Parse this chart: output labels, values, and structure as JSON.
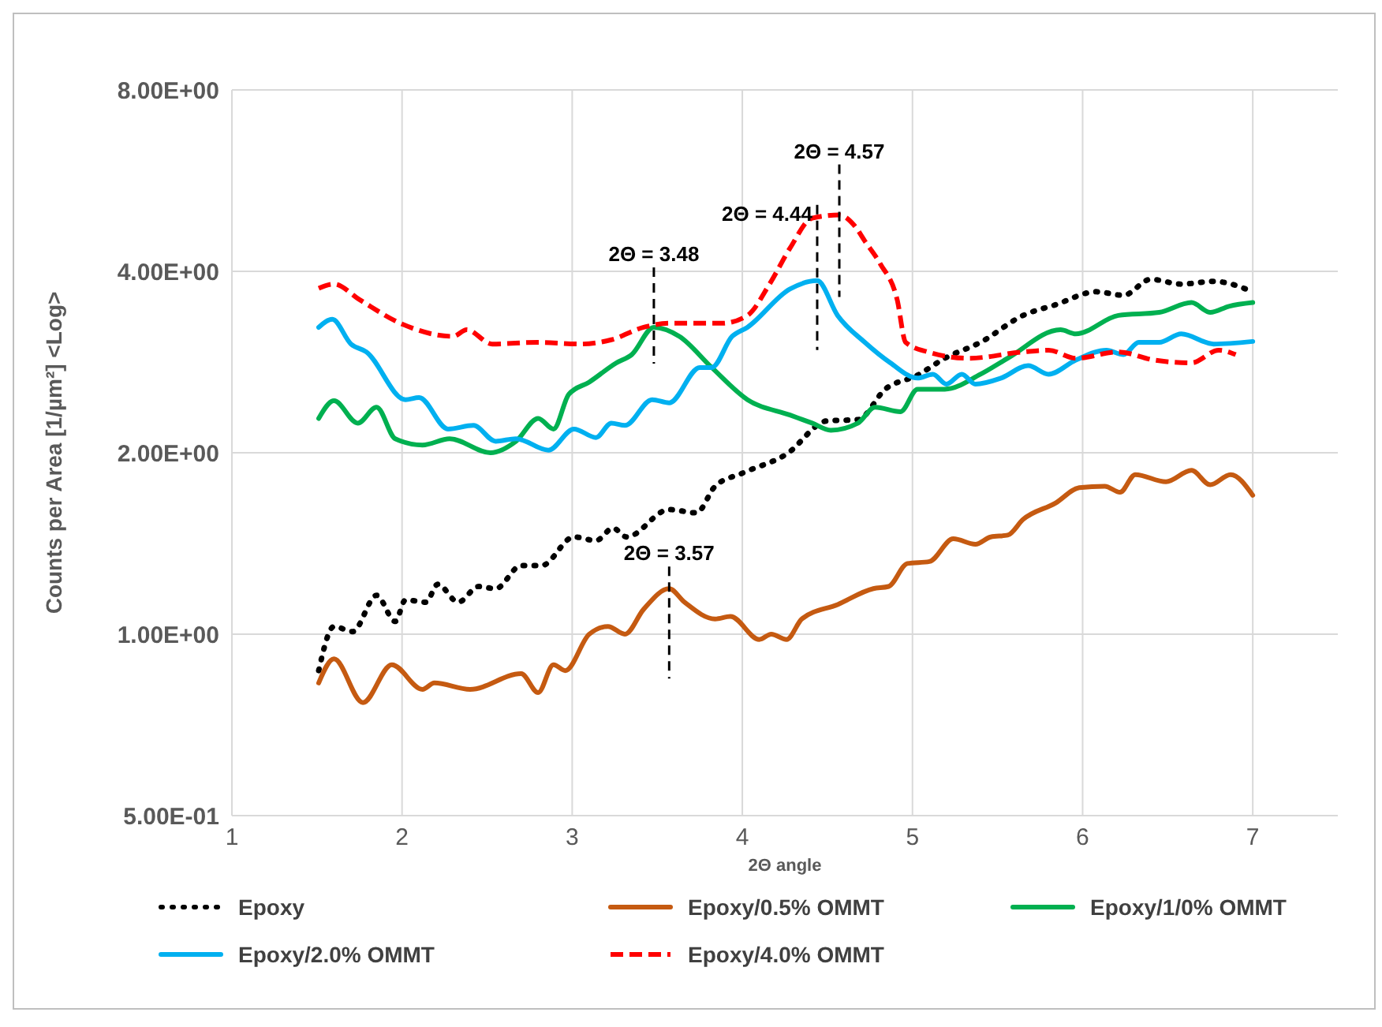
{
  "chart_data": {
    "type": "line",
    "xlabel": "2Θ angle",
    "ylabel": "Counts per Area [1/µm²] <Log>",
    "log": "y",
    "grid": true,
    "legend": "bottom",
    "marker": "none",
    "xlim": [
      1,
      7.5
    ],
    "xticks": [
      1,
      2,
      3,
      4,
      5,
      6,
      7
    ],
    "ylim": [
      0.5,
      8
    ],
    "yticks": [
      {
        "value": 0.5,
        "label": "5.00E-01"
      },
      {
        "value": 1,
        "label": "1.00E+00"
      },
      {
        "value": 2,
        "label": "2.00E+00"
      },
      {
        "value": 4,
        "label": "4.00E+00"
      },
      {
        "value": 8,
        "label": "8.00E+00"
      }
    ],
    "series": [
      {
        "name": "Epoxy",
        "color": "#000000",
        "line_style": "dotted",
        "x": [
          1.51,
          1.6,
          1.71,
          1.85,
          1.96,
          2.02,
          2.14,
          2.21,
          2.33,
          2.45,
          2.55,
          2.7,
          2.82,
          3.01,
          3.14,
          3.24,
          3.32,
          3.57,
          3.73,
          3.84,
          4.0,
          4.26,
          4.5,
          4.68,
          4.84,
          5.03,
          5.19,
          5.4,
          5.65,
          5.84,
          6.08,
          6.24,
          6.4,
          6.58,
          6.77,
          7.0
        ],
        "values": [
          0.87,
          1.03,
          1.01,
          1.16,
          1.05,
          1.14,
          1.13,
          1.21,
          1.13,
          1.2,
          1.19,
          1.3,
          1.3,
          1.45,
          1.43,
          1.5,
          1.45,
          1.61,
          1.59,
          1.76,
          1.85,
          1.99,
          2.26,
          2.27,
          2.55,
          2.69,
          2.87,
          3.05,
          3.38,
          3.52,
          3.7,
          3.65,
          3.88,
          3.81,
          3.85,
          3.7
        ]
      },
      {
        "name": "Epoxy/0.5% OMMT",
        "color": "#c55a11",
        "line_style": "solid",
        "x": [
          1.51,
          1.6,
          1.77,
          1.94,
          2.12,
          2.19,
          2.4,
          2.7,
          2.8,
          2.89,
          2.96,
          3.1,
          3.21,
          3.31,
          3.42,
          3.57,
          3.66,
          3.84,
          3.93,
          4.1,
          4.17,
          4.26,
          4.35,
          4.56,
          4.77,
          4.86,
          4.97,
          5.1,
          5.24,
          5.37,
          5.46,
          5.56,
          5.65,
          5.84,
          5.98,
          6.13,
          6.22,
          6.31,
          6.49,
          6.64,
          6.75,
          6.87,
          7.0
        ],
        "values": [
          0.83,
          0.91,
          0.77,
          0.89,
          0.81,
          0.83,
          0.81,
          0.86,
          0.8,
          0.89,
          0.87,
          1.0,
          1.03,
          1.0,
          1.1,
          1.19,
          1.13,
          1.06,
          1.07,
          0.98,
          1.0,
          0.98,
          1.06,
          1.12,
          1.19,
          1.2,
          1.31,
          1.32,
          1.44,
          1.41,
          1.45,
          1.46,
          1.55,
          1.65,
          1.75,
          1.76,
          1.72,
          1.84,
          1.79,
          1.87,
          1.77,
          1.84,
          1.7
        ]
      },
      {
        "name": "Epoxy/1/0% OMMT",
        "color": "#00b050",
        "line_style": "solid",
        "x": [
          1.51,
          1.6,
          1.74,
          1.85,
          1.96,
          2.12,
          2.28,
          2.52,
          2.67,
          2.8,
          2.89,
          2.98,
          3.1,
          3.26,
          3.35,
          3.48,
          3.63,
          3.82,
          4.03,
          4.28,
          4.41,
          4.52,
          4.68,
          4.78,
          4.93,
          5.03,
          5.19,
          5.4,
          5.56,
          5.87,
          5.96,
          6.21,
          6.45,
          6.64,
          6.75,
          6.86,
          7.0
        ],
        "values": [
          2.28,
          2.44,
          2.24,
          2.38,
          2.11,
          2.06,
          2.11,
          2.0,
          2.09,
          2.28,
          2.19,
          2.5,
          2.62,
          2.82,
          2.91,
          3.23,
          3.12,
          2.77,
          2.45,
          2.31,
          2.24,
          2.18,
          2.24,
          2.38,
          2.34,
          2.55,
          2.55,
          2.7,
          2.87,
          3.2,
          3.15,
          3.38,
          3.42,
          3.55,
          3.42,
          3.5,
          3.55
        ]
      },
      {
        "name": "Epoxy/2.0% OMMT",
        "color": "#00b0f0",
        "line_style": "solid",
        "x": [
          1.51,
          1.59,
          1.7,
          1.79,
          2.02,
          2.1,
          2.27,
          2.42,
          2.55,
          2.67,
          2.86,
          3.01,
          3.14,
          3.23,
          3.31,
          3.47,
          3.57,
          3.75,
          3.82,
          3.94,
          4.03,
          4.28,
          4.44,
          4.56,
          4.72,
          4.87,
          5.03,
          5.12,
          5.2,
          5.29,
          5.37,
          5.52,
          5.68,
          5.8,
          5.96,
          6.14,
          6.24,
          6.33,
          6.45,
          6.58,
          6.77,
          7.0
        ],
        "values": [
          3.23,
          3.33,
          3.03,
          2.94,
          2.45,
          2.47,
          2.19,
          2.22,
          2.09,
          2.11,
          2.02,
          2.19,
          2.12,
          2.24,
          2.22,
          2.45,
          2.42,
          2.77,
          2.77,
          3.12,
          3.23,
          3.74,
          3.86,
          3.38,
          3.05,
          2.82,
          2.66,
          2.7,
          2.6,
          2.7,
          2.6,
          2.66,
          2.79,
          2.7,
          2.85,
          2.96,
          2.91,
          3.05,
          3.05,
          3.15,
          3.03,
          3.06
        ]
      },
      {
        "name": "Epoxy/4.0% OMMT",
        "color": "#ff0000",
        "line_style": "dashed",
        "x": [
          1.51,
          1.6,
          1.75,
          1.99,
          2.3,
          2.38,
          2.53,
          2.8,
          3.05,
          3.23,
          3.42,
          3.57,
          3.88,
          4.03,
          4.16,
          4.28,
          4.41,
          4.57,
          4.66,
          4.72,
          4.81,
          4.91,
          4.96,
          5.09,
          5.33,
          5.65,
          5.8,
          5.96,
          6.21,
          6.42,
          6.64,
          6.8,
          6.9
        ],
        "values": [
          3.75,
          3.81,
          3.59,
          3.28,
          3.12,
          3.2,
          3.03,
          3.05,
          3.03,
          3.08,
          3.23,
          3.28,
          3.28,
          3.38,
          3.81,
          4.37,
          4.9,
          4.96,
          4.76,
          4.49,
          4.12,
          3.59,
          3.05,
          2.94,
          2.87,
          2.94,
          2.96,
          2.87,
          2.94,
          2.85,
          2.82,
          2.96,
          2.91
        ]
      }
    ],
    "annotations": [
      {
        "text": "2Θ = 3.48",
        "x": 3.48,
        "y": 3.23
      },
      {
        "text": "2Θ = 4.44",
        "x": 4.44,
        "y": 3.86
      },
      {
        "text": "2Θ = 4.57",
        "x": 4.57,
        "y": 4.96
      },
      {
        "text": "2Θ = 3.57",
        "x": 3.57,
        "y": 1.19
      }
    ]
  }
}
